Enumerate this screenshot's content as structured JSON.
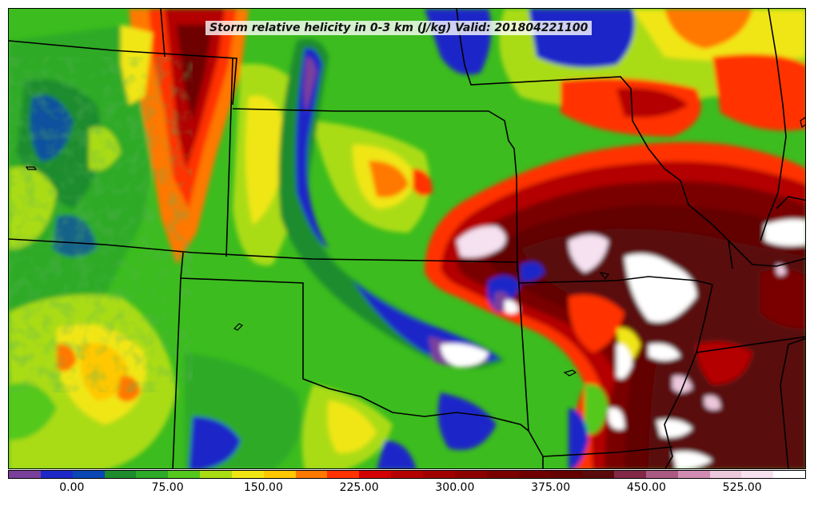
{
  "map": {
    "title": "Storm relative helicity in 0-3 km (J/kg) Valid: 201804221100",
    "variable": "Storm relative helicity",
    "layer": "0-3 km",
    "units": "J/kg",
    "valid_time": "201804221100"
  },
  "colorbar": {
    "min": -50,
    "max": 575,
    "step": 25,
    "colors": [
      "#7a3f9b",
      "#1e28c8",
      "#0a46b4",
      "#1e8c2d",
      "#2daa28",
      "#55c81e",
      "#aadc14",
      "#f0e614",
      "#ffc800",
      "#ff7800",
      "#ff3200",
      "#d20000",
      "#b40000",
      "#a00000",
      "#8c0000",
      "#7a0000",
      "#6e0000",
      "#640000",
      "#5a0a0a",
      "#822846",
      "#aa5a82",
      "#d28cb4",
      "#ebc8dc",
      "#f5e1f0",
      "#ffffff"
    ],
    "tick_labels": [
      "0.00",
      "75.00",
      "150.00",
      "225.00",
      "300.00",
      "375.00",
      "450.00",
      "525.00"
    ],
    "tick_values": [
      0,
      75,
      150,
      225,
      300,
      375,
      450,
      525
    ]
  }
}
